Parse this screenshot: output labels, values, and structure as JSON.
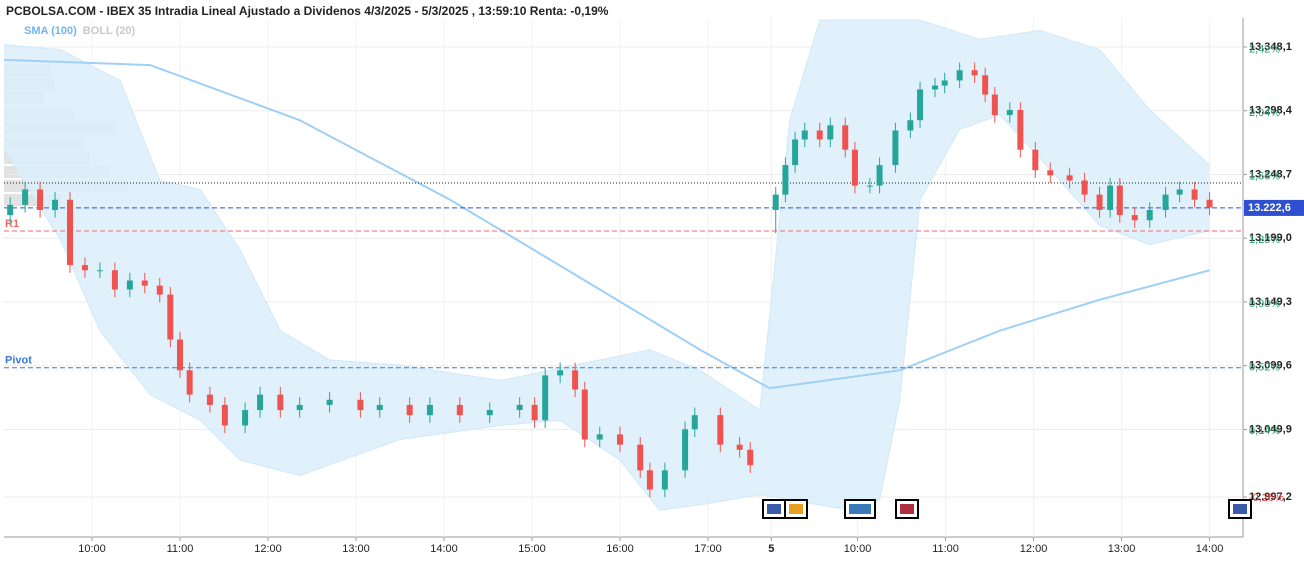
{
  "chart_data": {
    "type": "candlestick",
    "title": "PCBOLSA.COM - IBEX 35 Intradia Lineal Ajustado a Dividenos 4/3/2025 - 5/3/2025 , 13:59:10 Renta: -0,19%",
    "xlim": [
      9,
      23.08
    ],
    "ylim": [
      12966,
      13370.7
    ],
    "y2lim": [
      -0.51,
      2.59
    ],
    "grid": true,
    "xticks": [
      {
        "value": 10,
        "label": "10:00"
      },
      {
        "value": 11,
        "label": "11:00"
      },
      {
        "value": 12,
        "label": "12:00"
      },
      {
        "value": 13,
        "label": "13:00"
      },
      {
        "value": 14,
        "label": "14:00"
      },
      {
        "value": 15,
        "label": "15:00"
      },
      {
        "value": 16,
        "label": "16:00"
      },
      {
        "value": 17,
        "label": "17:00"
      },
      {
        "value": 17.72,
        "label": "5"
      },
      {
        "value": 18.7,
        "label": "10:00"
      },
      {
        "value": 19.7,
        "label": "11:00"
      },
      {
        "value": 20.7,
        "label": "12:00"
      },
      {
        "value": 21.7,
        "label": "13:00"
      },
      {
        "value": 22.7,
        "label": "14:00"
      }
    ],
    "yticks": [
      {
        "value": 13348.1,
        "label": "13.348,1"
      },
      {
        "value": 13298.4,
        "label": "13.298,4"
      },
      {
        "value": 13248.7,
        "label": "13.248,7"
      },
      {
        "value": 13199.0,
        "label": "13.199,0"
      },
      {
        "value": 13149.3,
        "label": "13.149,3"
      },
      {
        "value": 13099.6,
        "label": "13.099,6"
      },
      {
        "value": 13049.9,
        "label": "13.049,9"
      },
      {
        "value": 12997.2,
        "label": "12.997,2"
      }
    ],
    "y2ticks": [
      {
        "value": 2.42,
        "label": "2,42%"
      },
      {
        "value": 2.04,
        "label": "2,04%"
      },
      {
        "value": 1.66,
        "label": "1,66%"
      },
      {
        "value": 1.28,
        "label": "1,28%"
      },
      {
        "value": 0.9,
        "label": "0,90%"
      },
      {
        "value": 0.52,
        "label": "0,52%"
      },
      {
        "value": 0.14,
        "label": "0,14%"
      },
      {
        "value": -0.26,
        "label": "-0,26%"
      }
    ],
    "candles": {
      "up_color": "#26a69a",
      "down_color": "#ef5350",
      "x": [
        9.07,
        9.24,
        9.41,
        9.58,
        9.75,
        9.92,
        10.09,
        10.26,
        10.43,
        10.6,
        10.77,
        10.89,
        11.0,
        11.11,
        11.34,
        11.51,
        11.74,
        11.91,
        12.14,
        12.36,
        12.7,
        13.05,
        13.27,
        13.61,
        13.84,
        14.18,
        14.52,
        14.86,
        15.03,
        15.15,
        15.32,
        15.49,
        15.6,
        15.77,
        16.0,
        16.23,
        16.34,
        16.51,
        16.74,
        16.85,
        17.14,
        17.36,
        17.48,
        17.77,
        17.88,
        17.99,
        18.1,
        18.27,
        18.39,
        18.56,
        18.67,
        18.84,
        18.95,
        19.13,
        19.3,
        19.41,
        19.58,
        19.69,
        19.86,
        20.03,
        20.15,
        20.26,
        20.43,
        20.55,
        20.72,
        20.89,
        21.11,
        21.28,
        21.45,
        21.57,
        21.68,
        21.85,
        22.02,
        22.2,
        22.36,
        22.53,
        22.7
      ],
      "open": [
        13217,
        13225,
        13237,
        13221,
        13229,
        13178,
        13174,
        13174,
        13159,
        13166,
        13162,
        13155,
        13120,
        13096,
        13077,
        13069,
        13053,
        13065,
        13077,
        13065,
        13069,
        13073,
        13065,
        13069,
        13061,
        13069,
        13061,
        13065,
        13069,
        13057,
        13092,
        13096,
        13081,
        13042,
        13046,
        13038,
        13018,
        13003,
        13018,
        13050,
        13061,
        13038,
        13034,
        13221,
        13233,
        13256,
        13276,
        13283,
        13276,
        13287,
        13268,
        13240,
        13240,
        13256,
        13283,
        13291,
        13315,
        13318,
        13322,
        13330,
        13326,
        13311,
        13295,
        13299,
        13268,
        13252,
        13248,
        13244,
        13233,
        13221,
        13240,
        13217,
        13213,
        13221,
        13233,
        13237,
        13229
      ],
      "high": [
        13231,
        13243,
        13243,
        13235,
        13235,
        13184,
        13180,
        13180,
        13172,
        13172,
        13168,
        13161,
        13126,
        13102,
        13083,
        13075,
        13071,
        13083,
        13083,
        13075,
        13079,
        13079,
        13075,
        13075,
        13075,
        13075,
        13071,
        13075,
        13075,
        13098,
        13102,
        13102,
        13087,
        13052,
        13052,
        13044,
        13024,
        13024,
        13056,
        13067,
        13067,
        13044,
        13040,
        13239,
        13262,
        13282,
        13289,
        13289,
        13293,
        13293,
        13274,
        13246,
        13262,
        13289,
        13297,
        13321,
        13324,
        13328,
        13336,
        13336,
        13332,
        13317,
        13305,
        13305,
        13274,
        13258,
        13254,
        13250,
        13239,
        13246,
        13246,
        13223,
        13227,
        13239,
        13243,
        13243,
        13235
      ],
      "low": [
        13211,
        13219,
        13215,
        13215,
        13172,
        13168,
        13168,
        13153,
        13153,
        13156,
        13149,
        13114,
        13090,
        13071,
        13063,
        13047,
        13047,
        13059,
        13059,
        13059,
        13063,
        13059,
        13059,
        13055,
        13055,
        13055,
        13055,
        13059,
        13051,
        13051,
        13086,
        13075,
        13036,
        13036,
        13032,
        13012,
        12997,
        12997,
        13012,
        13044,
        13032,
        13028,
        13016,
        13203,
        13227,
        13250,
        13270,
        13270,
        13270,
        13262,
        13234,
        13234,
        13234,
        13250,
        13277,
        13285,
        13309,
        13312,
        13316,
        13320,
        13305,
        13289,
        13289,
        13262,
        13246,
        13242,
        13238,
        13227,
        13215,
        13215,
        13211,
        13207,
        13207,
        13215,
        13227,
        13223,
        13217
      ],
      "close": [
        13225,
        13237,
        13221,
        13229,
        13178,
        13174,
        13174,
        13159,
        13166,
        13162,
        13155,
        13120,
        13096,
        13077,
        13069,
        13053,
        13065,
        13077,
        13065,
        13069,
        13073,
        13065,
        13069,
        13061,
        13069,
        13061,
        13065,
        13069,
        13057,
        13092,
        13096,
        13081,
        13042,
        13046,
        13038,
        13018,
        13003,
        13018,
        13050,
        13061,
        13038,
        13034,
        13022,
        13233,
        13256,
        13276,
        13283,
        13276,
        13287,
        13268,
        13240,
        13240,
        13256,
        13283,
        13291,
        13315,
        13318,
        13322,
        13330,
        13326,
        13311,
        13295,
        13299,
        13268,
        13252,
        13248,
        13244,
        13233,
        13221,
        13240,
        13217,
        13213,
        13221,
        13233,
        13237,
        13229,
        13223
      ]
    },
    "series": [
      {
        "name": "SMA (100)",
        "color": "#9fd0f5",
        "x": [
          9.0,
          10.66,
          12.36,
          14.07,
          15.77,
          16.91,
          17.7,
          19.18,
          20.32,
          21.45,
          22.7
        ],
        "values": [
          13338,
          13334,
          13291,
          13229,
          13159,
          13112,
          13082,
          13096,
          13127,
          13151,
          13174
        ]
      },
      {
        "name": "BOLL (20)",
        "color": "#cfe8f8",
        "x_upper": [
          9.0,
          9.64,
          10.32,
          10.77,
          11.23,
          11.68,
          12.14,
          12.7,
          13.5,
          14.64,
          15.77,
          16.34,
          16.91,
          17.59,
          17.93,
          18.27,
          19.41,
          20.09,
          20.77,
          21.45,
          22.02,
          22.7
        ],
        "upper": [
          13350,
          13346,
          13322,
          13244,
          13237,
          13190,
          13127,
          13104,
          13100,
          13088,
          13104,
          13112,
          13096,
          13065,
          13291,
          13369,
          13369,
          13354,
          13361,
          13346,
          13299,
          13256
        ],
        "x_lower": [
          9.0,
          9.64,
          10.09,
          10.66,
          11.23,
          11.68,
          12.36,
          13.5,
          14.64,
          15.32,
          16.0,
          16.45,
          16.91,
          17.59,
          17.93,
          18.61,
          18.95,
          19.18,
          19.41,
          19.86,
          20.32,
          21.0,
          21.45,
          22.02,
          22.7
        ],
        "lower": [
          13268,
          13198,
          13127,
          13077,
          13057,
          13026,
          13014,
          13042,
          13053,
          13057,
          13026,
          12987,
          12991,
          12999,
          12995,
          12987,
          12995,
          13073,
          13229,
          13284,
          13295,
          13244,
          13209,
          13194,
          13205
        ]
      }
    ],
    "levels": [
      {
        "value": 13242,
        "color": "#222222",
        "style": "dotted"
      },
      {
        "value": 13222.6,
        "label": "13.222,6",
        "color": "#2d4fd0",
        "style": "dashed",
        "tag": true
      },
      {
        "value": 13204.6,
        "label": "R1",
        "color": "#f06a6a",
        "style": "dashed"
      },
      {
        "value": 13098,
        "label": "Pivot",
        "color": "#3a78d8",
        "style": "dashed"
      }
    ]
  }
}
